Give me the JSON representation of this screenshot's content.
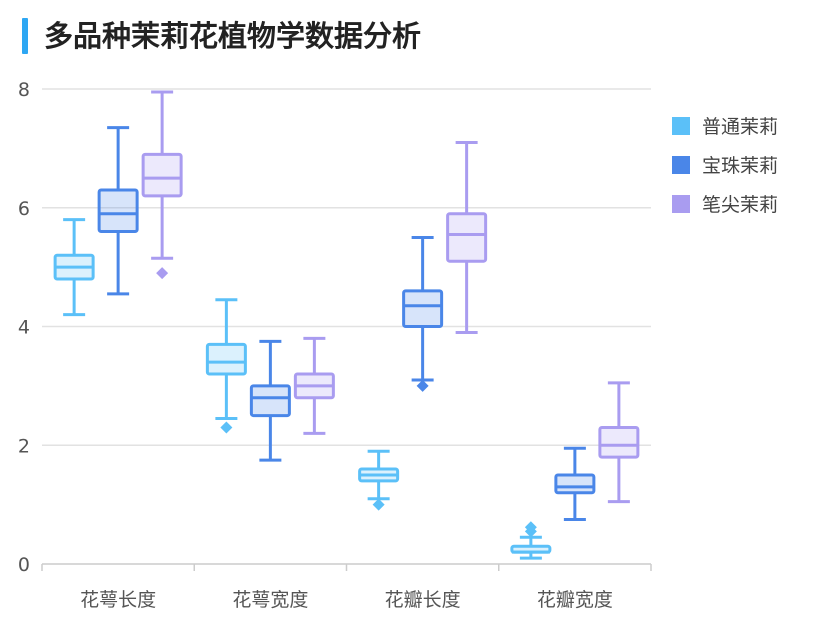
{
  "page": {
    "title": "多品种茉莉花植物学数据分析"
  },
  "chart_data": {
    "type": "boxplot",
    "title": "多品种茉莉花植物学数据分析",
    "xlabel": "",
    "ylabel": "",
    "ylim": [
      0,
      8
    ],
    "yticks": [
      0,
      2,
      4,
      6,
      8
    ],
    "grid": true,
    "legend_position": "right",
    "categories": [
      "花萼长度",
      "花萼宽度",
      "花瓣长度",
      "花瓣宽度"
    ],
    "series": [
      {
        "name": "普通茉莉",
        "color": "#5bc0f8",
        "boxes": [
          {
            "min": 4.2,
            "q1": 4.8,
            "median": 5.0,
            "q3": 5.2,
            "max": 5.8,
            "outliers": []
          },
          {
            "min": 2.45,
            "q1": 3.2,
            "median": 3.4,
            "q3": 3.7,
            "max": 4.45,
            "outliers": [
              2.3
            ]
          },
          {
            "min": 1.1,
            "q1": 1.4,
            "median": 1.5,
            "q3": 1.6,
            "max": 1.9,
            "outliers": [
              1.0
            ]
          },
          {
            "min": 0.1,
            "q1": 0.2,
            "median": 0.2,
            "q3": 0.3,
            "max": 0.45,
            "outliers": [
              0.55,
              0.62
            ]
          }
        ]
      },
      {
        "name": "宝珠茉莉",
        "color": "#4a86e8",
        "boxes": [
          {
            "min": 4.55,
            "q1": 5.6,
            "median": 5.9,
            "q3": 6.3,
            "max": 7.35,
            "outliers": []
          },
          {
            "min": 1.75,
            "q1": 2.5,
            "median": 2.8,
            "q3": 3.0,
            "max": 3.75,
            "outliers": []
          },
          {
            "min": 3.1,
            "q1": 4.0,
            "median": 4.35,
            "q3": 4.6,
            "max": 5.5,
            "outliers": [
              3.0
            ]
          },
          {
            "min": 0.75,
            "q1": 1.2,
            "median": 1.3,
            "q3": 1.5,
            "max": 1.95,
            "outliers": []
          }
        ]
      },
      {
        "name": "笔尖茉莉",
        "color": "#a99cf0",
        "boxes": [
          {
            "min": 5.15,
            "q1": 6.2,
            "median": 6.5,
            "q3": 6.9,
            "max": 7.95,
            "outliers": [
              4.9
            ]
          },
          {
            "min": 2.2,
            "q1": 2.8,
            "median": 3.0,
            "q3": 3.2,
            "max": 3.8,
            "outliers": []
          },
          {
            "min": 3.9,
            "q1": 5.1,
            "median": 5.55,
            "q3": 5.9,
            "max": 7.1,
            "outliers": []
          },
          {
            "min": 1.05,
            "q1": 1.8,
            "median": 2.0,
            "q3": 2.3,
            "max": 3.05,
            "outliers": []
          }
        ]
      }
    ]
  }
}
